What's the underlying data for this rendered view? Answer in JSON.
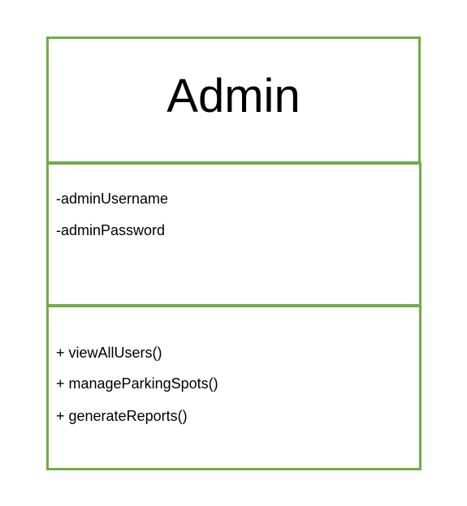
{
  "uml_class": {
    "name": "Admin",
    "attributes": [
      "-adminUsername",
      "-adminPassword"
    ],
    "operations": [
      "+ viewAllUsers()",
      "+ manageParkingSpots()",
      "+ generateReports()"
    ]
  },
  "colors": {
    "border": "#70ad47",
    "background": "#ffffff",
    "text": "#000000"
  }
}
